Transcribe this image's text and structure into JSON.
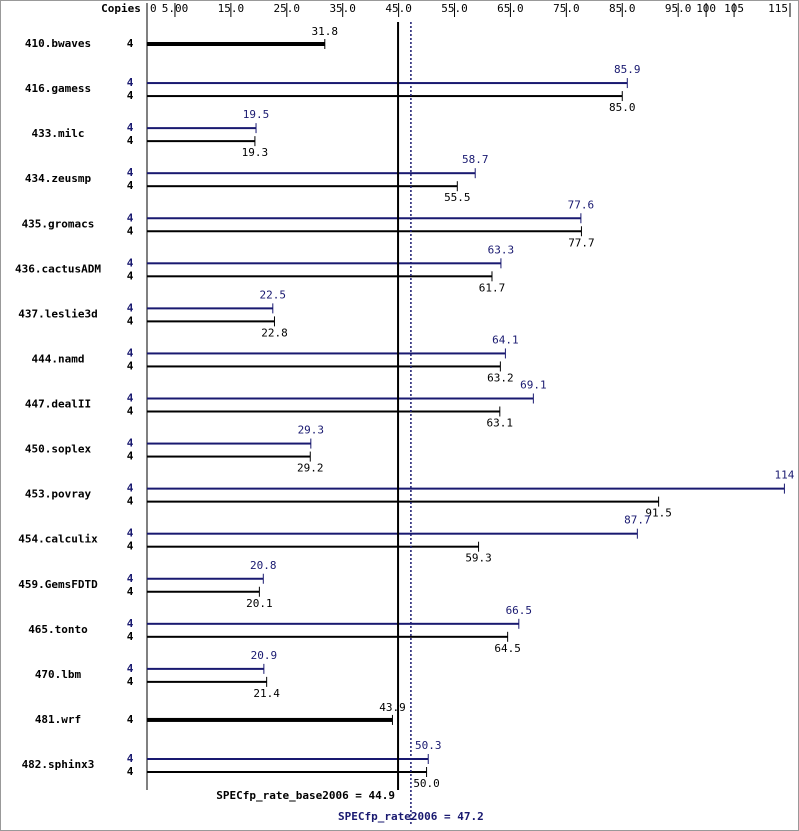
{
  "chart_data": {
    "type": "bar",
    "orientation": "horizontal",
    "copies_header": "Copies",
    "categories": [
      "410.bwaves",
      "416.gamess",
      "433.milc",
      "434.zeusmp",
      "435.gromacs",
      "436.cactusADM",
      "437.leslie3d",
      "444.namd",
      "447.dealII",
      "450.soplex",
      "453.povray",
      "454.calculix",
      "459.GemsFDTD",
      "465.tonto",
      "470.lbm",
      "481.wrf",
      "482.sphinx3"
    ],
    "series": [
      {
        "name": "SPECfp_rate2006",
        "color": "#191970",
        "copies": [
          null,
          4,
          4,
          4,
          4,
          4,
          4,
          4,
          4,
          4,
          4,
          4,
          4,
          4,
          4,
          null,
          4
        ],
        "values": [
          null,
          85.9,
          19.5,
          58.7,
          77.6,
          63.3,
          22.5,
          64.1,
          69.1,
          29.3,
          114,
          87.7,
          20.8,
          66.5,
          20.9,
          null,
          50.3
        ]
      },
      {
        "name": "SPECfp_rate_base2006",
        "color": "#000000",
        "copies": [
          4,
          4,
          4,
          4,
          4,
          4,
          4,
          4,
          4,
          4,
          4,
          4,
          4,
          4,
          4,
          4,
          4
        ],
        "values": [
          31.8,
          85.0,
          19.3,
          55.5,
          77.7,
          61.7,
          22.8,
          63.2,
          63.1,
          29.2,
          91.5,
          59.3,
          20.1,
          64.5,
          21.4,
          43.9,
          50.0
        ],
        "value_labels": [
          "31.8",
          "85.0",
          "19.3",
          "55.5",
          "77.7",
          "61.7",
          "22.8",
          "63.2",
          "63.1",
          "29.2",
          "91.5",
          "59.3",
          "20.1",
          "64.5",
          "21.4",
          "43.9",
          "50.0"
        ]
      }
    ],
    "xlim": [
      0,
      115
    ],
    "xticks": [
      0,
      {
        "value": 5,
        "label": "5.00"
      },
      {
        "value": 15,
        "label": "15.0"
      },
      {
        "value": 25,
        "label": "25.0"
      },
      {
        "value": 35,
        "label": "35.0"
      },
      {
        "value": 45,
        "label": "45.0"
      },
      {
        "value": 55,
        "label": "55.0"
      },
      {
        "value": 65,
        "label": "65.0"
      },
      {
        "value": 75,
        "label": "75.0"
      },
      {
        "value": 85,
        "label": "85.0"
      },
      {
        "value": 95,
        "label": "95.0"
      },
      100,
      105,
      115
    ],
    "reference_lines": [
      {
        "value": 44.9,
        "label": "SPECfp_rate_base2006 = 44.9",
        "color": "#000000",
        "style": "solid"
      },
      {
        "value": 47.2,
        "label": "SPECfp_rate2006 = 47.2",
        "color": "#191970",
        "style": "dotted"
      }
    ]
  }
}
